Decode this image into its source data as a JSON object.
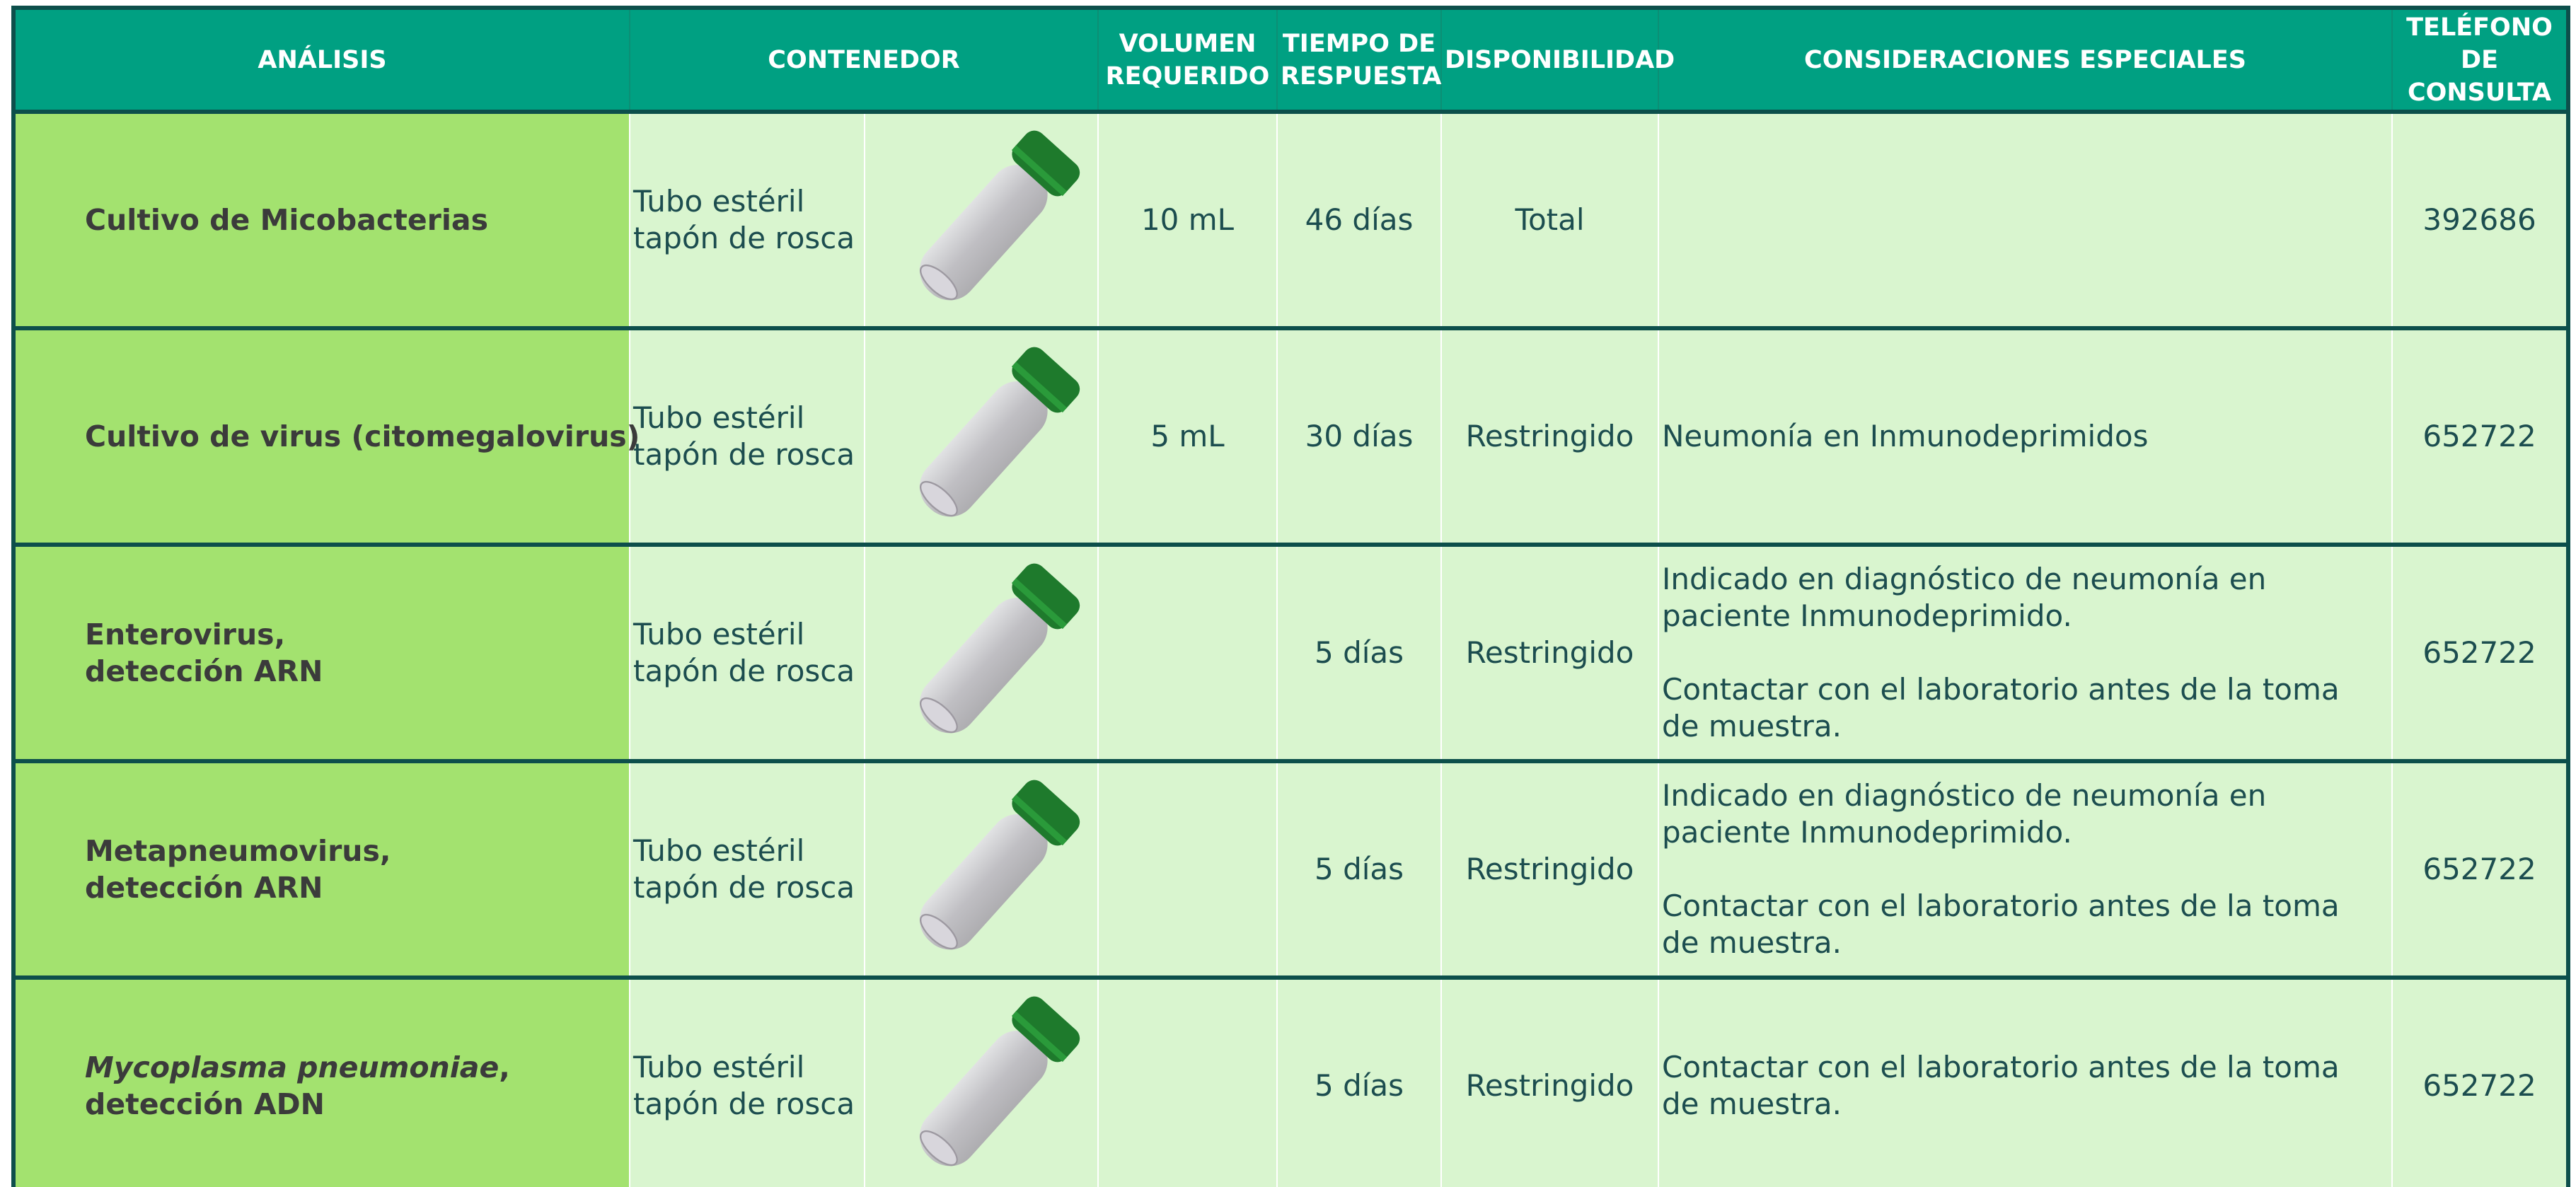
{
  "header": {
    "columns": [
      [
        "ANÁLISIS"
      ],
      [
        "CONTENEDOR"
      ],
      [
        "VOLUMEN",
        "REQUERIDO"
      ],
      [
        "TIEMPO DE",
        "RESPUESTA"
      ],
      [
        "DISPONIBILIDAD"
      ],
      [
        "CONSIDERACIONES ESPECIALES"
      ],
      [
        "TELÉFONO",
        "DE",
        "CONSULTA"
      ]
    ]
  },
  "rows": [
    {
      "analysis": [
        "Cultivo de Micobacterias"
      ],
      "container": [
        "Tubo estéril",
        "tapón de rosca"
      ],
      "volume": "10 mL",
      "time": "46 días",
      "availability": "Total",
      "considerations": null,
      "phone": "392686"
    },
    {
      "analysis": [
        "Cultivo de virus (citomegalovirus)"
      ],
      "container": [
        "Tubo estéril",
        "tapón de rosca"
      ],
      "volume": "5 mL",
      "time": "30 días",
      "availability": "Restringido",
      "considerations": [
        [
          "Neumonía en Inmunodeprimidos"
        ]
      ],
      "phone": "652722"
    },
    {
      "analysis": [
        "Enterovirus,",
        "detección ARN"
      ],
      "container": [
        "Tubo estéril",
        "tapón de rosca"
      ],
      "volume": null,
      "time": "5 días",
      "availability": "Restringido",
      "considerations": [
        [
          "Indicado en diagnóstico de neumonía en",
          "paciente Inmunodeprimido."
        ],
        [
          "Contactar con el laboratorio  antes de la toma",
          "de muestra."
        ]
      ],
      "phone": "652722"
    },
    {
      "analysis": [
        "Metapneumovirus,",
        "detección ARN"
      ],
      "container": [
        "Tubo estéril",
        "tapón de rosca"
      ],
      "volume": null,
      "time": "5 días",
      "availability": "Restringido",
      "considerations": [
        [
          "Indicado en diagnóstico de neumonía en",
          "paciente Inmunodeprimido."
        ],
        [
          "Contactar con el laboratorio  antes de la toma",
          "de muestra."
        ]
      ],
      "phone": "652722"
    },
    {
      "analysis_italic": "Mycoplasma pneumoniae",
      "analysis": [
        ",",
        "detección ADN"
      ],
      "container": [
        "Tubo estéril",
        "tapón de rosca"
      ],
      "volume": null,
      "time": "5 días",
      "availability": "Restringido",
      "considerations": [
        [
          "Contactar con el laboratorio  antes de la toma",
          "de muestra."
        ]
      ],
      "phone": "652722"
    }
  ]
}
